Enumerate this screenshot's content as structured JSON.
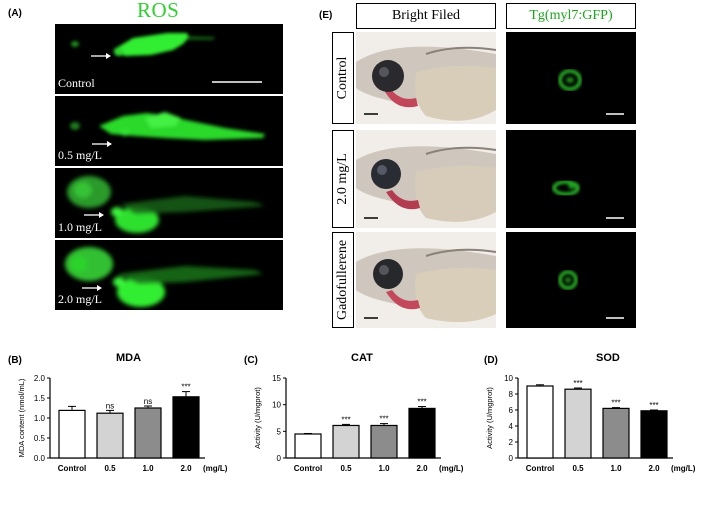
{
  "panelA": {
    "letter": "(A)",
    "title": "ROS",
    "images": [
      {
        "label": "Control"
      },
      {
        "label": "0.5 mg/L"
      },
      {
        "label": "1.0 mg/L"
      },
      {
        "label": "2.0 mg/L"
      }
    ]
  },
  "panelE": {
    "letter": "(E)",
    "columns": [
      "Bright Filed",
      "Tg(myl7:GFP)"
    ],
    "rows": [
      "Control",
      "2.0 mg/L",
      "Gadofullerene"
    ]
  },
  "colors": {
    "ros_green": "#2fd12f",
    "gfp_green": "#1aa81a",
    "control": "#ffffff",
    "dose_05": "#d3d3d3",
    "dose_10": "#8c8c8c",
    "dose_20": "#000000"
  },
  "chart_data": [
    {
      "id": "B",
      "letter": "(B)",
      "type": "bar",
      "title": "MDA",
      "ylabel": "MDA content (nmol/mL)",
      "unit_label": "(mg/L)",
      "categories": [
        "Control",
        "0.5",
        "1.0",
        "2.0"
      ],
      "values": [
        1.19,
        1.12,
        1.25,
        1.53
      ],
      "errors": [
        0.1,
        0.07,
        0.05,
        0.13
      ],
      "significance": [
        "",
        "ns",
        "ns",
        "***"
      ],
      "ylim": [
        0,
        2.0
      ],
      "yticks": [
        "0.0",
        "0.5",
        "1.0",
        "1.5",
        "2.0"
      ],
      "grid": false
    },
    {
      "id": "C",
      "letter": "(C)",
      "type": "bar",
      "title": "CAT",
      "ylabel": "Activity (U/mgprot)",
      "unit_label": "(mg/L)",
      "categories": [
        "Control",
        "0.5",
        "1.0",
        "2.0"
      ],
      "values": [
        4.5,
        6.1,
        6.1,
        9.3
      ],
      "errors": [
        0.1,
        0.2,
        0.35,
        0.35
      ],
      "significance": [
        "",
        "***",
        "***",
        "***"
      ],
      "ylim": [
        0,
        15
      ],
      "yticks": [
        "0",
        "5",
        "10",
        "15"
      ],
      "grid": false
    },
    {
      "id": "D",
      "letter": "(D)",
      "type": "bar",
      "title": "SOD",
      "ylabel": "Activity (U/mgprot)",
      "unit_label": "(mg/L)",
      "categories": [
        "Control",
        "0.5",
        "1.0",
        "2.0"
      ],
      "values": [
        9.0,
        8.6,
        6.2,
        5.9
      ],
      "errors": [
        0.15,
        0.15,
        0.1,
        0.1
      ],
      "significance": [
        "",
        "***",
        "***",
        "***"
      ],
      "ylim": [
        0,
        10
      ],
      "yticks": [
        "0",
        "2",
        "4",
        "6",
        "8",
        "10"
      ],
      "grid": false
    }
  ]
}
